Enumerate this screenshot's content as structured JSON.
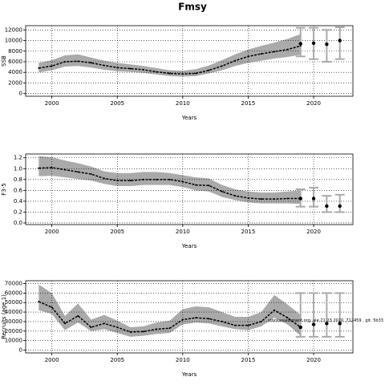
{
  "title": "Fmsy",
  "chart_data": [
    {
      "type": "line",
      "ylabel": "SSB",
      "xlabel": "Years",
      "x": [
        1999,
        2000,
        2001,
        2002,
        2003,
        2004,
        2005,
        2006,
        2007,
        2008,
        2009,
        2010,
        2011,
        2012,
        2013,
        2014,
        2015,
        2016,
        2017,
        2018,
        2019,
        2020,
        2021,
        2022
      ],
      "series": [
        {
          "color": "#000000",
          "style": "dashed",
          "values": [
            4800,
            5200,
            6000,
            6100,
            5800,
            5300,
            4900,
            4700,
            4500,
            4100,
            3800,
            3700,
            3800,
            4400,
            5200,
            6200,
            7000,
            7500,
            7900,
            8300,
            9000,
            null,
            null,
            null
          ]
        },
        {
          "color": "#000000",
          "style": "points",
          "values": [
            null,
            null,
            null,
            null,
            null,
            null,
            null,
            null,
            null,
            null,
            null,
            null,
            null,
            null,
            null,
            null,
            null,
            null,
            null,
            null,
            9400,
            9500,
            9300,
            10000
          ]
        }
      ],
      "band": {
        "color": "#aaaaaa",
        "lower": [
          4000,
          4400,
          5100,
          5200,
          4900,
          4500,
          4200,
          4100,
          3900,
          3600,
          3300,
          3200,
          3300,
          3800,
          4400,
          5200,
          5800,
          6200,
          6600,
          6900,
          7300,
          null,
          null,
          null
        ],
        "upper": [
          5800,
          6300,
          7200,
          7400,
          6800,
          6200,
          5800,
          5500,
          5200,
          4800,
          4400,
          4300,
          4600,
          5300,
          6300,
          7400,
          8300,
          9000,
          9600,
          10300,
          11200,
          null,
          null,
          null
        ]
      },
      "error_bars": {
        "color": "#aaaaaa",
        "lower": [
          null,
          null,
          null,
          null,
          null,
          null,
          null,
          null,
          null,
          null,
          null,
          null,
          null,
          null,
          null,
          null,
          null,
          null,
          null,
          null,
          7000,
          6500,
          6000,
          6500
        ],
        "upper": [
          null,
          null,
          null,
          null,
          null,
          null,
          null,
          null,
          null,
          null,
          null,
          null,
          null,
          null,
          null,
          null,
          null,
          null,
          null,
          null,
          12400,
          12400,
          12000,
          12500
        ]
      },
      "xlim": [
        1998,
        2023
      ],
      "xticks": [
        2000,
        2005,
        2010,
        2015,
        2020
      ],
      "ylim": [
        -500,
        12800
      ],
      "yticks": [
        0,
        2000,
        4000,
        6000,
        8000,
        10000,
        12000
      ],
      "grid": true
    },
    {
      "type": "line",
      "ylabel": "F3-5",
      "xlabel": "Years",
      "x": [
        1999,
        2000,
        2001,
        2002,
        2003,
        2004,
        2005,
        2006,
        2007,
        2008,
        2009,
        2010,
        2011,
        2012,
        2013,
        2014,
        2015,
        2016,
        2017,
        2018,
        2019,
        2020,
        2021,
        2022
      ],
      "series": [
        {
          "color": "#000000",
          "style": "dashed",
          "values": [
            1.01,
            1.02,
            0.98,
            0.94,
            0.9,
            0.82,
            0.78,
            0.78,
            0.8,
            0.8,
            0.8,
            0.76,
            0.7,
            0.69,
            0.58,
            0.5,
            0.46,
            0.44,
            0.44,
            0.45,
            0.45,
            null,
            null,
            null
          ]
        },
        {
          "color": "#000000",
          "style": "points",
          "values": [
            null,
            null,
            null,
            null,
            null,
            null,
            null,
            null,
            null,
            null,
            null,
            null,
            null,
            null,
            null,
            null,
            null,
            null,
            null,
            null,
            0.45,
            0.45,
            0.31,
            0.31
          ]
        }
      ],
      "band": {
        "color": "#aaaaaa",
        "lower": [
          0.86,
          0.87,
          0.84,
          0.81,
          0.78,
          0.72,
          0.68,
          0.68,
          0.7,
          0.7,
          0.7,
          0.66,
          0.6,
          0.58,
          0.48,
          0.42,
          0.38,
          0.36,
          0.36,
          0.36,
          0.35,
          null,
          null,
          null
        ],
        "upper": [
          1.23,
          1.21,
          1.15,
          1.1,
          1.04,
          0.95,
          0.92,
          0.92,
          0.94,
          0.94,
          0.92,
          0.88,
          0.84,
          0.82,
          0.7,
          0.62,
          0.58,
          0.56,
          0.56,
          0.58,
          0.6,
          null,
          null,
          null
        ]
      },
      "error_bars": {
        "color": "#aaaaaa",
        "lower": [
          null,
          null,
          null,
          null,
          null,
          null,
          null,
          null,
          null,
          null,
          null,
          null,
          null,
          null,
          null,
          null,
          null,
          null,
          null,
          null,
          0.3,
          0.3,
          0.2,
          0.2
        ],
        "upper": [
          null,
          null,
          null,
          null,
          null,
          null,
          null,
          null,
          null,
          null,
          null,
          null,
          null,
          null,
          null,
          null,
          null,
          null,
          null,
          null,
          0.62,
          0.65,
          0.5,
          0.52
        ]
      },
      "xlim": [
        1998,
        2023
      ],
      "xticks": [
        2000,
        2005,
        2010,
        2015,
        2020
      ],
      "ylim": [
        -0.03,
        1.27
      ],
      "yticks": [
        {
          "value": 0,
          "label": "0.0"
        },
        0.2,
        0.4,
        0.6,
        0.8,
        {
          "value": 1,
          "label": "1.0"
        },
        1.2
      ],
      "grid": true
    },
    {
      "type": "line",
      "ylabel": "Recruits (age 1)",
      "xlabel": "Years",
      "annotation": "stockassessment.org, ale 21:23 2020 ,712459 , git: 5b33",
      "x": [
        1999,
        2000,
        2001,
        2002,
        2003,
        2004,
        2005,
        2006,
        2007,
        2008,
        2009,
        2010,
        2011,
        2012,
        2013,
        2014,
        2015,
        2016,
        2017,
        2018,
        2019,
        2020,
        2021,
        2022
      ],
      "series": [
        {
          "color": "#000000",
          "style": "dashed",
          "values": [
            51000,
            45000,
            28000,
            36000,
            24000,
            28000,
            24000,
            19000,
            19500,
            22000,
            23000,
            32000,
            34000,
            33000,
            30000,
            26000,
            26000,
            30000,
            42000,
            34000,
            24000,
            null,
            null,
            null
          ]
        },
        {
          "color": "#000000",
          "style": "points",
          "values": [
            null,
            null,
            null,
            null,
            null,
            null,
            null,
            null,
            null,
            null,
            null,
            null,
            null,
            null,
            null,
            null,
            null,
            null,
            null,
            null,
            24000,
            27000,
            28000,
            28000
          ]
        }
      ],
      "band": {
        "color": "#aaaaaa",
        "lower": [
          42000,
          38000,
          21000,
          29000,
          20000,
          22000,
          18000,
          14000,
          15000,
          17000,
          18000,
          27000,
          29000,
          28000,
          25000,
          22000,
          21000,
          25000,
          34000,
          27000,
          15000,
          null,
          null,
          null
        ],
        "upper": [
          69000,
          60000,
          36000,
          49000,
          32000,
          37000,
          31000,
          24000,
          25000,
          29000,
          31000,
          43000,
          46000,
          45000,
          40000,
          35000,
          35000,
          40000,
          58000,
          48000,
          37000,
          null,
          null,
          null
        ]
      },
      "error_bars": {
        "color": "#aaaaaa",
        "lower": [
          null,
          null,
          null,
          null,
          null,
          null,
          null,
          null,
          null,
          null,
          null,
          null,
          null,
          null,
          null,
          null,
          null,
          null,
          null,
          null,
          14000,
          14000,
          14000,
          14000
        ],
        "upper": [
          null,
          null,
          null,
          null,
          null,
          null,
          null,
          null,
          null,
          null,
          null,
          null,
          null,
          null,
          null,
          null,
          null,
          null,
          null,
          null,
          60000,
          60000,
          60000,
          60000
        ]
      },
      "xlim": [
        1998,
        2023
      ],
      "xticks": [
        2000,
        2005,
        2010,
        2015,
        2020
      ],
      "ylim": [
        -3000,
        73000
      ],
      "yticks": [
        0,
        10000,
        20000,
        30000,
        40000,
        50000,
        60000,
        70000
      ],
      "grid": true
    }
  ]
}
